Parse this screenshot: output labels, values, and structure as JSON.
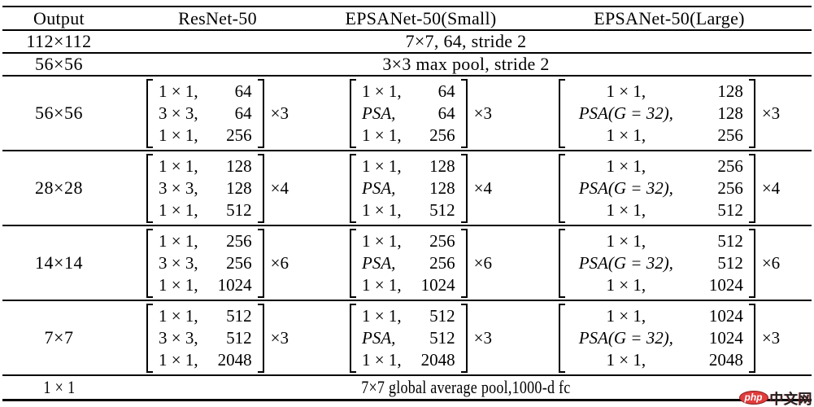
{
  "colors": {
    "rule": "#000000",
    "watermark_red": "#e23c3c",
    "watermark_text": "#222222"
  },
  "watermark": {
    "logo": "php",
    "name": "中文网"
  },
  "table": {
    "headers": [
      "Output",
      "ResNet-50",
      "EPSANet-50(Small)",
      "EPSANet-50(Large)"
    ],
    "simple_rows": [
      {
        "output": "112×112",
        "span": "7×7, 64, stride 2"
      },
      {
        "output": "56×56",
        "span": "3×3 max pool, stride 2"
      }
    ],
    "stages": [
      {
        "output": "56×56",
        "resnet": {
          "ops": [
            "1 × 1,",
            "3 × 3,",
            "1 × 1,"
          ],
          "vals": [
            "64",
            "64",
            "256"
          ],
          "mult": "×3"
        },
        "small": {
          "ops": [
            "1 × 1,",
            "PSA,",
            "1 × 1,"
          ],
          "vals": [
            "64",
            "64",
            "256"
          ],
          "mult": "×3"
        },
        "large": {
          "ops": [
            "1 × 1,",
            "PSA(G = 32),",
            "1 × 1,"
          ],
          "vals": [
            "128",
            "128",
            "256"
          ],
          "mult": "×3"
        }
      },
      {
        "output": "28×28",
        "resnet": {
          "ops": [
            "1 × 1,",
            "3 × 3,",
            "1 × 1,"
          ],
          "vals": [
            "128",
            "128",
            "512"
          ],
          "mult": "×4"
        },
        "small": {
          "ops": [
            "1 × 1,",
            "PSA,",
            "1 × 1,"
          ],
          "vals": [
            "128",
            "128",
            "512"
          ],
          "mult": "×4"
        },
        "large": {
          "ops": [
            "1 × 1,",
            "PSA(G = 32),",
            "1 × 1,"
          ],
          "vals": [
            "256",
            "256",
            "512"
          ],
          "mult": "×4"
        }
      },
      {
        "output": "14×14",
        "resnet": {
          "ops": [
            "1 × 1,",
            "3 × 3,",
            "1 × 1,"
          ],
          "vals": [
            "256",
            "256",
            "1024"
          ],
          "mult": "×6"
        },
        "small": {
          "ops": [
            "1 × 1,",
            "PSA,",
            "1 × 1,"
          ],
          "vals": [
            "256",
            "256",
            "1024"
          ],
          "mult": "×6"
        },
        "large": {
          "ops": [
            "1 × 1,",
            "PSA(G = 32),",
            "1 × 1,"
          ],
          "vals": [
            "512",
            "512",
            "1024"
          ],
          "mult": "×6"
        }
      },
      {
        "output": "7×7",
        "resnet": {
          "ops": [
            "1 × 1,",
            "3 × 3,",
            "1 × 1,"
          ],
          "vals": [
            "512",
            "512",
            "2048"
          ],
          "mult": "×3"
        },
        "small": {
          "ops": [
            "1 × 1,",
            "PSA,",
            "1 × 1,"
          ],
          "vals": [
            "512",
            "512",
            "2048"
          ],
          "mult": "×3"
        },
        "large": {
          "ops": [
            "1 × 1,",
            "PSA(G = 32),",
            "1 × 1,"
          ],
          "vals": [
            "1024",
            "1024",
            "2048"
          ],
          "mult": "×3"
        }
      }
    ],
    "footer_row": {
      "output": "1 × 1",
      "span": "7×7 global average pool,1000-d fc"
    }
  }
}
